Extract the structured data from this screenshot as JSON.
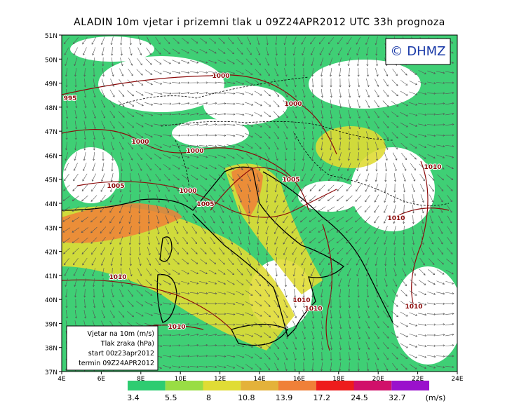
{
  "header": {
    "title": "ALADIN 10m vjetar i prizemni tlak u 09Z24APR2012 UTC 33h prognoza"
  },
  "logo": "© DHMZ",
  "lat_labels": [
    "51N",
    "50N",
    "49N",
    "48N",
    "47N",
    "46N",
    "45N",
    "44N",
    "43N",
    "42N",
    "41N",
    "40N",
    "39N",
    "38N",
    "37N"
  ],
  "lon_labels": [
    "4E",
    "6E",
    "8E",
    "10E",
    "12E",
    "14E",
    "16E",
    "18E",
    "20E",
    "22E",
    "24E"
  ],
  "isobar_labels": [
    "995",
    "1000",
    "1000",
    "1000",
    "1000",
    "1005",
    "1000",
    "1005",
    "1005",
    "1010",
    "1010",
    "1010",
    "1010",
    "1010",
    "1010",
    "1010"
  ],
  "legend": [
    "Vjetar na 10m (m/s)",
    "Tlak zraka (hPa)",
    "start 00z23apr2012",
    "termin 09Z24APR2012"
  ],
  "colorbar": {
    "labels": [
      "3.4",
      "5.5",
      "8",
      "10.8",
      "13.9",
      "17.2",
      "24.5",
      "32.7"
    ],
    "unit": "(m/s)",
    "colors": [
      "#2ecc71",
      "#99dd44",
      "#e0dc35",
      "#e4b23a",
      "#f08038",
      "#ee1c1c",
      "#d1106a",
      "#9a11cc"
    ]
  }
}
